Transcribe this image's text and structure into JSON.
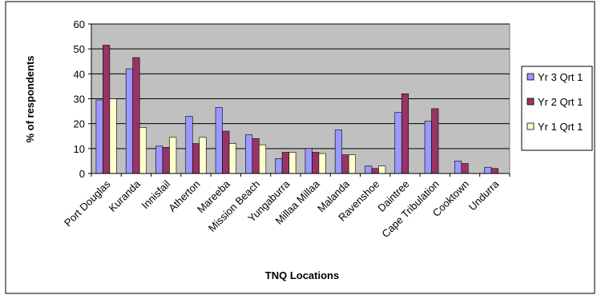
{
  "chart_data": {
    "type": "bar",
    "xlabel": "TNQ Locations",
    "ylabel": "% of respondents",
    "ylim": [
      0,
      60
    ],
    "yticks": [
      0,
      10,
      20,
      30,
      40,
      50,
      60
    ],
    "grid": true,
    "legend_position": "right",
    "categories": [
      "Port Douglas",
      "Kuranda",
      "Innisfail",
      "Atherton",
      "Mareeba",
      "Mission Beach",
      "Yungaburra",
      "Millaa Millaa",
      "Malanda",
      "Ravenshoe",
      "Daintree",
      "Cape Tribulation",
      "Cooktown",
      "Undurra"
    ],
    "series": [
      {
        "name": "Yr 3 Qrt 1",
        "color": "#9999ff",
        "values": [
          29.5,
          42,
          11,
          23,
          26.5,
          15.5,
          6,
          10,
          17.5,
          3,
          24.5,
          21,
          5,
          2.5
        ]
      },
      {
        "name": "Yr 2 Qrt 1",
        "color": "#993366",
        "values": [
          51.5,
          46.5,
          10.5,
          12,
          17,
          14,
          8.5,
          8.5,
          7.5,
          2,
          32,
          26,
          4,
          2
        ]
      },
      {
        "name": "Yr 1 Qrt 1",
        "color": "#ffffcc",
        "values": [
          30,
          18.5,
          14.5,
          14.5,
          12,
          11.5,
          8.5,
          8,
          7.5,
          3,
          0,
          0,
          0,
          0
        ]
      }
    ],
    "plot_background": "#c0c0c0"
  }
}
